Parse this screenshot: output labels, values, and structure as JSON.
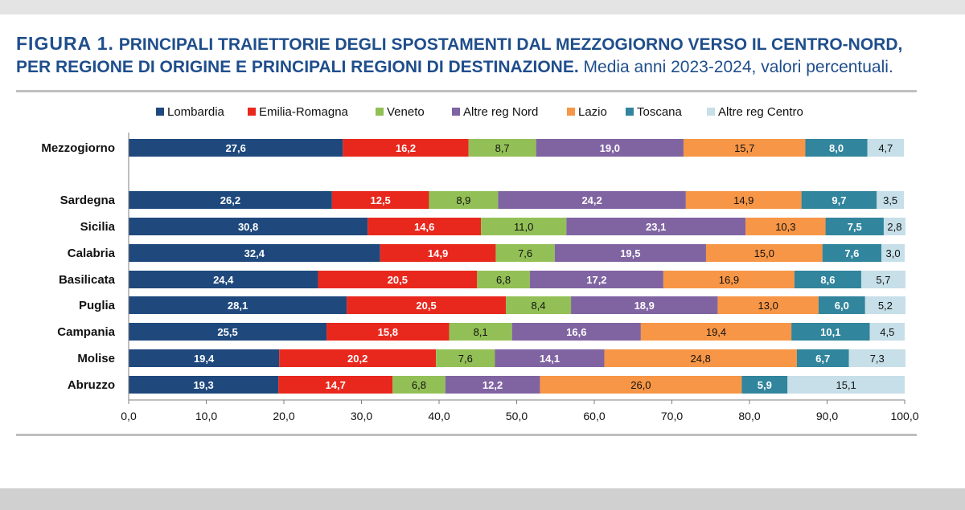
{
  "header": {
    "figure_label": "FIGURA 1.",
    "title_line1": "PRINCIPALI TRAIETTORIE DEGLI SPOSTAMENTI DAL MEZZOGIORNO VERSO IL CENTRO-NORD,",
    "title_line2": "PER REGIONE DI ORIGINE E PRINCIPALI REGIONI DI DESTINAZIONE.",
    "subtitle": "Media anni 2023-2024, valori percentuali."
  },
  "colors": {
    "accent": "#1f4e8c",
    "series": [
      "#1f497d",
      "#e8281d",
      "#93c056",
      "#8064a2",
      "#f79646",
      "#31859c",
      "#c6dfe8"
    ]
  },
  "chart_data": {
    "type": "bar",
    "orientation": "horizontal",
    "stacked": true,
    "categories": [
      "Mezzogiorno",
      "Sardegna",
      "Sicilia",
      "Calabria",
      "Basilicata",
      "Puglia",
      "Campania",
      "Molise",
      "Abruzzo"
    ],
    "series": [
      {
        "name": "Lombardia",
        "values": [
          27.6,
          26.2,
          30.8,
          32.4,
          24.4,
          28.1,
          25.5,
          19.4,
          19.3
        ],
        "labels": [
          "27,6",
          "26,2",
          "30,8",
          "32,4",
          "24,4",
          "28,1",
          "25,5",
          "19,4",
          "19,3"
        ]
      },
      {
        "name": "Emilia-Romagna",
        "values": [
          16.2,
          12.5,
          14.6,
          14.9,
          20.5,
          20.5,
          15.8,
          20.2,
          14.7
        ],
        "labels": [
          "16,2",
          "12,5",
          "14,6",
          "14,9",
          "20,5",
          "20,5",
          "15,8",
          "20,2",
          "14,7"
        ]
      },
      {
        "name": "Veneto",
        "values": [
          8.7,
          8.9,
          11.0,
          7.6,
          6.8,
          8.4,
          8.1,
          7.6,
          6.8
        ],
        "labels": [
          "8,7",
          "8,9",
          "11,0",
          "7,6",
          "6,8",
          "8,4",
          "8,1",
          "7,6",
          "6,8"
        ]
      },
      {
        "name": "Altre reg Nord",
        "values": [
          19.0,
          24.2,
          23.1,
          19.5,
          17.2,
          18.9,
          16.6,
          14.1,
          12.2
        ],
        "labels": [
          "19,0",
          "24,2",
          "23,1",
          "19,5",
          "17,2",
          "18,9",
          "16,6",
          "14,1",
          "12,2"
        ]
      },
      {
        "name": "Lazio",
        "values": [
          15.7,
          14.9,
          10.3,
          15.0,
          16.9,
          13.0,
          19.4,
          24.8,
          26.0
        ],
        "labels": [
          "15,7",
          "14,9",
          "10,3",
          "15,0",
          "16,9",
          "13,0",
          "19,4",
          "24,8",
          "26,0"
        ]
      },
      {
        "name": "Toscana",
        "values": [
          8.0,
          9.7,
          7.5,
          7.6,
          8.6,
          6.0,
          10.1,
          6.7,
          5.9
        ],
        "labels": [
          "8,0",
          "9,7",
          "7,5",
          "7,6",
          "8,6",
          "6,0",
          "10,1",
          "6,7",
          "5,9"
        ]
      },
      {
        "name": "Altre reg Centro",
        "values": [
          4.7,
          3.5,
          2.8,
          3.0,
          5.7,
          5.2,
          4.5,
          7.3,
          15.1
        ],
        "labels": [
          "4,7",
          "3,5",
          "2,8",
          "3,0",
          "5,7",
          "5,2",
          "4,5",
          "7,3",
          "15,1"
        ]
      }
    ],
    "xlim": [
      0,
      100
    ],
    "xticks": [
      "0,0",
      "10,0",
      "20,0",
      "30,0",
      "40,0",
      "50,0",
      "60,0",
      "70,0",
      "80,0",
      "90,0",
      "100,0"
    ],
    "legend_position": "top",
    "grid": false
  }
}
